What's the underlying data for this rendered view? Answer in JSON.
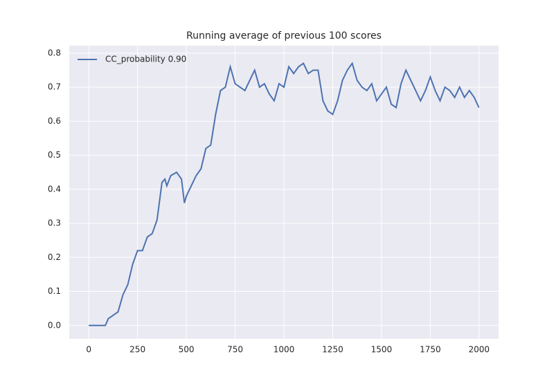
{
  "chart_data": {
    "type": "line",
    "title": "Running average of previous 100 scores",
    "x": [
      0,
      25,
      50,
      75,
      85,
      100,
      125,
      150,
      175,
      200,
      225,
      250,
      275,
      300,
      325,
      350,
      375,
      390,
      400,
      420,
      450,
      475,
      490,
      500,
      525,
      550,
      575,
      600,
      625,
      650,
      675,
      700,
      725,
      750,
      775,
      800,
      825,
      850,
      875,
      900,
      925,
      950,
      975,
      1000,
      1025,
      1050,
      1075,
      1100,
      1125,
      1150,
      1175,
      1200,
      1225,
      1250,
      1275,
      1300,
      1325,
      1350,
      1375,
      1400,
      1425,
      1450,
      1475,
      1500,
      1525,
      1550,
      1575,
      1600,
      1625,
      1650,
      1675,
      1700,
      1725,
      1750,
      1775,
      1800,
      1825,
      1850,
      1875,
      1900,
      1925,
      1950,
      1975,
      1999
    ],
    "series": [
      {
        "name": "CC_probability 0.90",
        "color": "#4c72b0",
        "values": [
          0,
          0,
          0,
          0,
          0,
          0.02,
          0.03,
          0.04,
          0.09,
          0.12,
          0.18,
          0.22,
          0.22,
          0.26,
          0.27,
          0.31,
          0.42,
          0.43,
          0.41,
          0.44,
          0.45,
          0.43,
          0.36,
          0.38,
          0.41,
          0.44,
          0.46,
          0.52,
          0.53,
          0.62,
          0.69,
          0.7,
          0.76,
          0.71,
          0.7,
          0.69,
          0.72,
          0.75,
          0.7,
          0.71,
          0.68,
          0.66,
          0.71,
          0.7,
          0.76,
          0.74,
          0.76,
          0.77,
          0.74,
          0.75,
          0.75,
          0.66,
          0.63,
          0.62,
          0.66,
          0.72,
          0.75,
          0.77,
          0.72,
          0.7,
          0.69,
          0.71,
          0.66,
          0.68,
          0.7,
          0.65,
          0.64,
          0.71,
          0.75,
          0.72,
          0.69,
          0.66,
          0.69,
          0.73,
          0.69,
          0.66,
          0.7,
          0.69,
          0.67,
          0.7,
          0.67,
          0.69,
          0.67,
          0.64
        ]
      }
    ],
    "xlim": [
      -100,
      2100
    ],
    "ylim": [
      -0.039,
      0.822
    ],
    "xticks": [
      0,
      250,
      500,
      750,
      1000,
      1250,
      1500,
      1750,
      2000
    ],
    "yticks": [
      {
        "value": 0,
        "label": "0.0"
      },
      0.1,
      0.2,
      0.3,
      0.4,
      0.5,
      0.6,
      0.7,
      0.8
    ],
    "grid": true,
    "background": "#eaeaf2",
    "legend": "upper left"
  }
}
